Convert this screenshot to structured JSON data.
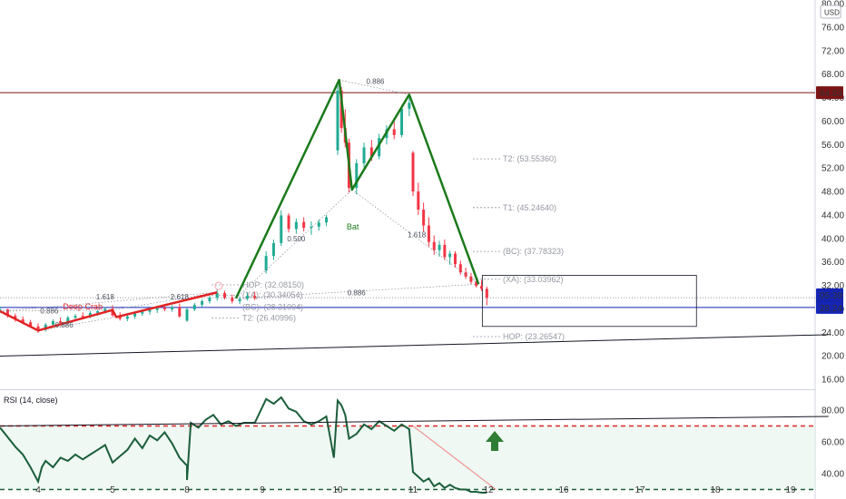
{
  "currency": "USD",
  "chart_data": {
    "type": "candlestick",
    "price_axis": {
      "ticks": [
        80.0,
        76.0,
        72.0,
        68.0,
        64.0,
        60.0,
        56.0,
        52.0,
        48.0,
        44.0,
        40.0,
        36.0,
        32.0,
        28.0,
        24.0,
        20.0,
        16.0
      ],
      "ylim": [
        14.5,
        80.5
      ]
    },
    "time_axis": {
      "labels": [
        "4",
        "5",
        "8",
        "9",
        "10",
        "11",
        "12",
        "16",
        "17",
        "18",
        "19"
      ],
      "xlim": [
        3.5,
        19.25
      ]
    },
    "price_markers": [
      {
        "value": 64.83,
        "label": "64.83",
        "bg": "#7b1416",
        "fg": "#ffffff"
      },
      {
        "value": 29.9,
        "label": "29.90",
        "bg": "#131722",
        "fg": "#ffffff"
      },
      {
        "value": 28.24,
        "label": "28.24",
        "bg": "#1424b3",
        "fg": "#ffffff",
        "countdown": "05:39"
      }
    ],
    "candles": [
      {
        "t": 3.5,
        "o": 27.8,
        "h": 28.4,
        "l": 27.3,
        "c": 27.9
      },
      {
        "t": 3.6,
        "o": 27.9,
        "h": 28.0,
        "l": 26.5,
        "c": 26.8
      },
      {
        "t": 3.7,
        "o": 26.8,
        "h": 27.2,
        "l": 25.8,
        "c": 26.2
      },
      {
        "t": 3.8,
        "o": 26.2,
        "h": 26.7,
        "l": 25.4,
        "c": 25.7
      },
      {
        "t": 3.9,
        "o": 25.7,
        "h": 26.1,
        "l": 24.8,
        "c": 25.0
      },
      {
        "t": 4.0,
        "o": 25.0,
        "h": 25.5,
        "l": 23.9,
        "c": 24.4
      },
      {
        "t": 4.1,
        "o": 24.4,
        "h": 25.6,
        "l": 24.1,
        "c": 25.3
      },
      {
        "t": 4.2,
        "o": 25.3,
        "h": 26.2,
        "l": 25.0,
        "c": 25.9
      },
      {
        "t": 4.3,
        "o": 25.9,
        "h": 26.5,
        "l": 25.3,
        "c": 25.6
      },
      {
        "t": 4.4,
        "o": 25.6,
        "h": 26.8,
        "l": 25.4,
        "c": 26.5
      },
      {
        "t": 4.5,
        "o": 26.5,
        "h": 27.1,
        "l": 26.0,
        "c": 26.8
      },
      {
        "t": 4.6,
        "o": 26.8,
        "h": 27.4,
        "l": 26.2,
        "c": 26.6
      },
      {
        "t": 4.7,
        "o": 26.6,
        "h": 27.6,
        "l": 26.4,
        "c": 27.3
      },
      {
        "t": 4.8,
        "o": 27.3,
        "h": 27.8,
        "l": 26.8,
        "c": 27.6
      },
      {
        "t": 4.9,
        "o": 27.6,
        "h": 28.3,
        "l": 27.2,
        "c": 28.0
      },
      {
        "t": 5.0,
        "o": 28.0,
        "h": 28.6,
        "l": 26.6,
        "c": 26.9
      },
      {
        "t": 5.1,
        "o": 26.9,
        "h": 27.4,
        "l": 26.0,
        "c": 26.3
      },
      {
        "t": 5.2,
        "o": 26.3,
        "h": 27.0,
        "l": 25.9,
        "c": 26.7
      },
      {
        "t": 5.3,
        "o": 26.7,
        "h": 27.5,
        "l": 26.3,
        "c": 27.2
      },
      {
        "t": 5.4,
        "o": 27.2,
        "h": 27.9,
        "l": 26.8,
        "c": 27.5
      },
      {
        "t": 5.5,
        "o": 27.5,
        "h": 28.1,
        "l": 27.0,
        "c": 27.8
      },
      {
        "t": 5.6,
        "o": 27.8,
        "h": 28.5,
        "l": 27.3,
        "c": 28.2
      },
      {
        "t": 5.7,
        "o": 28.2,
        "h": 28.8,
        "l": 27.6,
        "c": 27.9
      },
      {
        "t": 5.8,
        "o": 27.9,
        "h": 28.6,
        "l": 27.5,
        "c": 28.3
      },
      {
        "t": 5.9,
        "o": 28.3,
        "h": 28.9,
        "l": 26.5,
        "c": 26.7
      },
      {
        "t": 6.0,
        "o": 26.7,
        "h": 27.2,
        "l": 25.8,
        "c": 26.0
      },
      {
        "t": 8.0,
        "o": 26.0,
        "h": 28.2,
        "l": 25.8,
        "c": 27.9
      },
      {
        "t": 8.1,
        "o": 27.9,
        "h": 29.0,
        "l": 27.6,
        "c": 28.7
      },
      {
        "t": 8.2,
        "o": 28.7,
        "h": 29.6,
        "l": 28.3,
        "c": 29.3
      },
      {
        "t": 8.3,
        "o": 29.3,
        "h": 30.2,
        "l": 28.9,
        "c": 29.9
      },
      {
        "t": 8.4,
        "o": 29.9,
        "h": 31.3,
        "l": 29.4,
        "c": 30.7
      },
      {
        "t": 8.5,
        "o": 30.7,
        "h": 31.1,
        "l": 29.6,
        "c": 29.9
      },
      {
        "t": 8.6,
        "o": 29.9,
        "h": 30.4,
        "l": 28.9,
        "c": 29.3
      },
      {
        "t": 8.7,
        "o": 29.3,
        "h": 30.1,
        "l": 28.8,
        "c": 29.7
      },
      {
        "t": 8.8,
        "o": 29.7,
        "h": 30.8,
        "l": 29.4,
        "c": 30.2
      },
      {
        "t": 8.9,
        "o": 30.2,
        "h": 30.9,
        "l": 29.5,
        "c": 29.8
      },
      {
        "t": 9.05,
        "o": 34.5,
        "h": 37.8,
        "l": 34.0,
        "c": 37.0
      },
      {
        "t": 9.15,
        "o": 37.0,
        "h": 39.8,
        "l": 36.3,
        "c": 39.2
      },
      {
        "t": 9.25,
        "o": 39.2,
        "h": 44.8,
        "l": 38.7,
        "c": 43.9
      },
      {
        "t": 9.35,
        "o": 43.9,
        "h": 44.3,
        "l": 41.0,
        "c": 41.6
      },
      {
        "t": 9.45,
        "o": 41.6,
        "h": 43.4,
        "l": 40.8,
        "c": 42.8
      },
      {
        "t": 9.55,
        "o": 42.8,
        "h": 43.6,
        "l": 41.2,
        "c": 41.8
      },
      {
        "t": 9.65,
        "o": 41.8,
        "h": 42.9,
        "l": 40.6,
        "c": 42.0
      },
      {
        "t": 9.75,
        "o": 42.0,
        "h": 43.2,
        "l": 41.3,
        "c": 42.7
      },
      {
        "t": 9.85,
        "o": 42.7,
        "h": 44.0,
        "l": 42.1,
        "c": 43.6
      },
      {
        "t": 10.0,
        "o": 55.0,
        "h": 66.5,
        "l": 54.2,
        "c": 65.2
      },
      {
        "t": 10.05,
        "o": 65.2,
        "h": 65.8,
        "l": 58.0,
        "c": 58.8
      },
      {
        "t": 10.1,
        "o": 58.8,
        "h": 62.0,
        "l": 55.5,
        "c": 56.3
      },
      {
        "t": 10.15,
        "o": 56.3,
        "h": 57.0,
        "l": 47.8,
        "c": 48.6
      },
      {
        "t": 10.25,
        "o": 48.6,
        "h": 53.5,
        "l": 47.5,
        "c": 52.8
      },
      {
        "t": 10.35,
        "o": 52.8,
        "h": 56.3,
        "l": 51.8,
        "c": 55.5
      },
      {
        "t": 10.45,
        "o": 55.5,
        "h": 56.8,
        "l": 53.2,
        "c": 54.0
      },
      {
        "t": 10.55,
        "o": 54.0,
        "h": 57.8,
        "l": 53.5,
        "c": 57.1
      },
      {
        "t": 10.65,
        "o": 57.1,
        "h": 59.3,
        "l": 56.0,
        "c": 58.6
      },
      {
        "t": 10.75,
        "o": 58.6,
        "h": 60.2,
        "l": 56.9,
        "c": 57.6
      },
      {
        "t": 10.85,
        "o": 57.6,
        "h": 62.7,
        "l": 57.2,
        "c": 62.1
      },
      {
        "t": 10.95,
        "o": 62.1,
        "h": 64.4,
        "l": 60.8,
        "c": 63.1
      },
      {
        "t": 11.0,
        "o": 54.6,
        "h": 54.9,
        "l": 47.2,
        "c": 48.0
      },
      {
        "t": 11.07,
        "o": 48.0,
        "h": 49.5,
        "l": 44.0,
        "c": 44.9
      },
      {
        "t": 11.14,
        "o": 44.9,
        "h": 46.1,
        "l": 41.1,
        "c": 42.2
      },
      {
        "t": 11.21,
        "o": 42.2,
        "h": 43.6,
        "l": 38.6,
        "c": 39.4
      },
      {
        "t": 11.28,
        "o": 39.4,
        "h": 40.5,
        "l": 37.2,
        "c": 38.0
      },
      {
        "t": 11.35,
        "o": 38.0,
        "h": 39.6,
        "l": 36.9,
        "c": 38.9
      },
      {
        "t": 11.42,
        "o": 38.9,
        "h": 39.8,
        "l": 36.3,
        "c": 36.8
      },
      {
        "t": 11.49,
        "o": 36.8,
        "h": 37.9,
        "l": 35.5,
        "c": 37.4
      },
      {
        "t": 11.56,
        "o": 37.4,
        "h": 37.8,
        "l": 35.0,
        "c": 35.6
      },
      {
        "t": 11.63,
        "o": 35.6,
        "h": 36.2,
        "l": 33.8,
        "c": 34.2
      },
      {
        "t": 11.7,
        "o": 34.2,
        "h": 35.0,
        "l": 33.1,
        "c": 33.5
      },
      {
        "t": 11.77,
        "o": 33.5,
        "h": 34.1,
        "l": 32.2,
        "c": 32.6
      },
      {
        "t": 11.84,
        "o": 32.6,
        "h": 33.4,
        "l": 31.6,
        "c": 31.9
      },
      {
        "t": 11.91,
        "o": 31.9,
        "h": 32.9,
        "l": 31.0,
        "c": 31.4
      },
      {
        "t": 11.98,
        "o": 31.4,
        "h": 31.8,
        "l": 28.6,
        "c": 29.9
      }
    ],
    "harmonics": [
      {
        "name": "Bat",
        "color": "#1b7a1b",
        "points": [
          [
            8.65,
            29.8
          ],
          [
            10.02,
            67.0
          ],
          [
            10.19,
            48.3
          ],
          [
            10.95,
            64.5
          ],
          [
            11.87,
            32.2
          ]
        ],
        "label": {
          "text": "Bat",
          "at": [
            10.2,
            41.5
          ]
        },
        "ratios": [
          {
            "text": "0.500",
            "at": [
              9.45,
              39.5
            ]
          },
          {
            "text": "0.886",
            "at": [
              10.5,
              66.3
            ]
          },
          {
            "text": "1.618",
            "at": [
              11.05,
              40.2
            ]
          },
          {
            "text": "0.886",
            "at": [
              10.25,
              30.3
            ]
          }
        ]
      },
      {
        "name": "Deep Crab",
        "color": "#e02424",
        "points": [
          [
            3.5,
            27.6
          ],
          [
            4.0,
            24.3
          ],
          [
            5.0,
            27.8
          ],
          [
            5.05,
            26.6
          ],
          [
            8.4,
            30.8
          ]
        ],
        "label": {
          "text": "Deep Crab",
          "at": [
            4.6,
            27.9
          ]
        },
        "ratios": [
          {
            "text": "0.886",
            "at": [
              4.15,
              27.2
            ]
          },
          {
            "text": "1.618",
            "at": [
              4.9,
              29.6
            ]
          },
          {
            "text": "2.618",
            "at": [
              5.9,
              29.6
            ]
          },
          {
            "text": "0.886",
            "at": [
              4.35,
              24.8
            ]
          }
        ]
      }
    ],
    "levels_right": [
      {
        "text": "T2: (53.55360)",
        "value": 53.55
      },
      {
        "text": "T1: (45.24640)",
        "value": 45.25
      },
      {
        "text": "(BC): (37.78323)",
        "value": 37.78
      },
      {
        "text": "(XA): (33.03962)",
        "value": 33.04
      },
      {
        "text": "HOP: (23.26547)",
        "value": 23.27
      }
    ],
    "levels_left": [
      {
        "text": "HOP: (32.08150)",
        "value": 32.08
      },
      {
        "text": "(XA): (30.34054)",
        "value": 30.34
      },
      {
        "text": "(BC): (28.31004)",
        "value": 28.31
      },
      {
        "text": "T2: (26.40996)",
        "value": 26.41
      }
    ],
    "rsi": {
      "title": "RSI (14, close)",
      "ticks": [
        80.0,
        60.0,
        40.0
      ],
      "ylim": [
        28,
        90
      ],
      "upper": 70,
      "lower": 30,
      "values": [
        [
          3.5,
          69
        ],
        [
          3.6,
          63
        ],
        [
          3.7,
          57
        ],
        [
          3.8,
          52
        ],
        [
          3.9,
          44
        ],
        [
          4.0,
          35
        ],
        [
          4.05,
          44
        ],
        [
          4.1,
          48
        ],
        [
          4.2,
          44
        ],
        [
          4.3,
          50
        ],
        [
          4.4,
          48
        ],
        [
          4.5,
          52
        ],
        [
          4.6,
          49
        ],
        [
          4.7,
          52
        ],
        [
          4.8,
          55
        ],
        [
          4.9,
          58
        ],
        [
          5.0,
          47
        ],
        [
          5.1,
          51
        ],
        [
          5.2,
          55
        ],
        [
          5.3,
          62
        ],
        [
          5.4,
          56
        ],
        [
          5.5,
          64
        ],
        [
          5.6,
          61
        ],
        [
          5.7,
          66
        ],
        [
          5.8,
          59
        ],
        [
          5.9,
          50
        ],
        [
          6.0,
          45
        ],
        [
          8.0,
          36
        ],
        [
          8.05,
          72
        ],
        [
          8.15,
          69
        ],
        [
          8.25,
          74
        ],
        [
          8.35,
          77
        ],
        [
          8.45,
          71
        ],
        [
          8.55,
          73
        ],
        [
          8.65,
          70
        ],
        [
          8.75,
          72
        ],
        [
          8.9,
          72
        ],
        [
          9.05,
          87
        ],
        [
          9.15,
          84
        ],
        [
          9.25,
          88
        ],
        [
          9.35,
          81
        ],
        [
          9.45,
          79
        ],
        [
          9.55,
          73
        ],
        [
          9.65,
          71
        ],
        [
          9.75,
          73
        ],
        [
          9.85,
          76
        ],
        [
          9.95,
          50
        ],
        [
          10.0,
          86
        ],
        [
          10.05,
          83
        ],
        [
          10.1,
          77
        ],
        [
          10.15,
          62
        ],
        [
          10.25,
          65
        ],
        [
          10.35,
          71
        ],
        [
          10.45,
          68
        ],
        [
          10.55,
          73
        ],
        [
          10.65,
          70
        ],
        [
          10.75,
          67
        ],
        [
          10.85,
          71
        ],
        [
          10.95,
          68
        ],
        [
          11.0,
          41
        ],
        [
          11.07,
          38
        ],
        [
          11.14,
          35
        ],
        [
          11.21,
          37
        ],
        [
          11.28,
          32
        ],
        [
          11.35,
          34
        ],
        [
          11.42,
          31
        ],
        [
          11.49,
          33
        ],
        [
          11.56,
          31
        ],
        [
          11.63,
          30
        ],
        [
          11.7,
          30
        ],
        [
          11.77,
          28.5
        ],
        [
          11.84,
          28.5
        ],
        [
          11.91,
          28
        ],
        [
          11.98,
          28
        ]
      ]
    },
    "trendlines": [
      {
        "name": "support",
        "price": [
          [
            2.5,
            19.5
          ],
          [
            19.5,
            23.6
          ]
        ]
      },
      {
        "name": "rsi-trend",
        "rsi": [
          [
            3.5,
            70
          ],
          [
            19.5,
            76
          ]
        ]
      },
      {
        "name": "rsi-down",
        "rsi": [
          [
            11.0,
            70
          ],
          [
            12.4,
            30
          ]
        ]
      }
    ],
    "target_box": {
      "t0": 11.92,
      "t1": 17.75,
      "p0": 25.0,
      "p1": 33.7
    }
  }
}
